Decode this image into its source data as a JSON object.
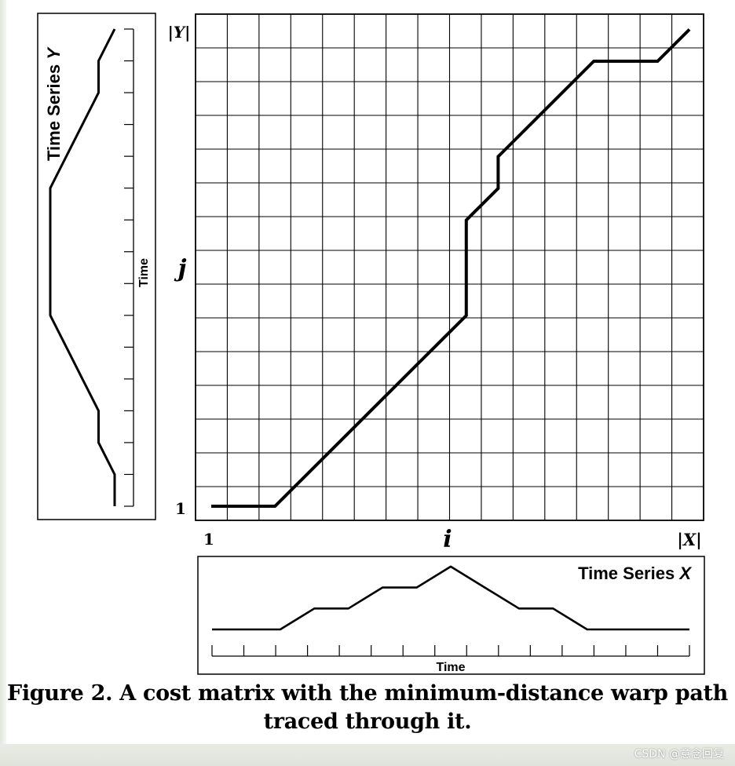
{
  "panel_y": {
    "title_prefix": "Time Series ",
    "title_var": "Y",
    "axis_label": "Time",
    "profile_steps": [
      0,
      0,
      1,
      1,
      2,
      3,
      4,
      4,
      4,
      4,
      4,
      3,
      2,
      1,
      1,
      0
    ],
    "tick_count": 15
  },
  "matrix": {
    "y_top_label": "|Y|",
    "j_label": "j",
    "one_label_y": "1",
    "one_label_x": "1",
    "i_label": "i",
    "x_right_label": "|X|",
    "cols": 16,
    "rows": 15,
    "warp_path": [
      [
        0,
        0
      ],
      [
        2,
        0
      ],
      [
        8,
        6
      ],
      [
        8,
        9
      ],
      [
        9,
        10
      ],
      [
        9,
        11
      ],
      [
        12,
        14
      ],
      [
        14,
        14
      ],
      [
        15,
        15
      ]
    ]
  },
  "panel_x": {
    "title_prefix": "Time Series ",
    "title_var": "X",
    "axis_label": "Time",
    "profile_steps": [
      0,
      0,
      0,
      1,
      1,
      2,
      2,
      3,
      2,
      1,
      1,
      0,
      0,
      0,
      0
    ],
    "tick_count": 15
  },
  "caption": {
    "line1": "Figure 2. A cost matrix with the minimum-distance warp path",
    "line2": "traced through it."
  },
  "watermark": "CSDN @意念回复"
}
